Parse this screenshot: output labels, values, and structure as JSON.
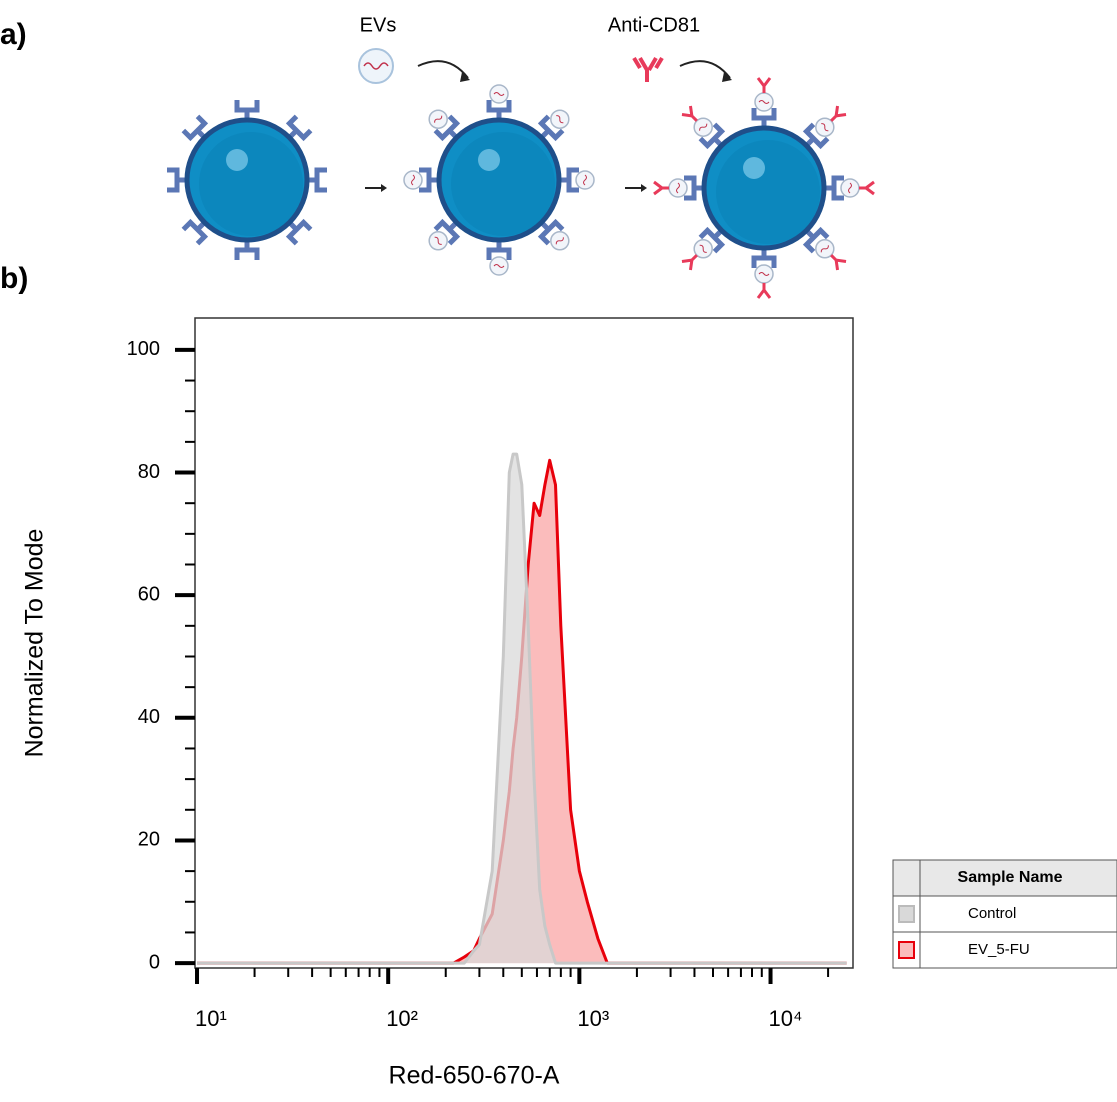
{
  "panel_labels": [
    "a)",
    "b)"
  ],
  "diagram": {
    "labels": [
      "EVs",
      "Anti-CD81"
    ]
  },
  "chart_data": {
    "type": "area",
    "x_label": "Red-650-670-A",
    "y_label": "Normalized To Mode",
    "log_x": true,
    "xlim": [
      9.76,
      27000
    ],
    "xticks": [
      {
        "value": 10,
        "label": "10¹"
      },
      {
        "value": 100,
        "label": "10²"
      },
      {
        "value": 1000,
        "label": "10³"
      },
      {
        "value": 10000,
        "label": "10⁴"
      }
    ],
    "xminorticks": [
      20,
      30,
      40,
      50,
      60,
      70,
      80,
      90,
      200,
      300,
      400,
      500,
      600,
      700,
      800,
      900,
      2000,
      3000,
      4000,
      5000,
      6000,
      7000,
      8000,
      9000,
      20000
    ],
    "ylim": [
      -0.8,
      105.2
    ],
    "yticks": [
      0,
      20,
      40,
      60,
      80,
      100
    ],
    "yminorticks": [
      5,
      10,
      15,
      25,
      30,
      35,
      45,
      50,
      55,
      65,
      70,
      75,
      85,
      90,
      95
    ],
    "legend_title": "Sample Name",
    "x": [
      10,
      220,
      250,
      280,
      300,
      350,
      400,
      430,
      450,
      470,
      500,
      540,
      580,
      620,
      660,
      700,
      750,
      800,
      900,
      1000,
      1100,
      1250,
      1400,
      25000
    ],
    "series": [
      {
        "name": "Control",
        "color": "#c8c8c8",
        "fill": "#d9d9d9",
        "values": [
          0,
          0,
          0,
          2,
          3,
          15,
          50,
          80,
          83,
          83,
          78,
          55,
          30,
          12,
          6,
          3,
          0,
          0,
          0,
          0,
          0,
          0,
          0,
          0
        ]
      },
      {
        "name": "EV_5-FU",
        "color": "#e8000b",
        "fill": "#fbbcbc",
        "values": [
          0,
          0,
          1,
          2,
          4,
          8,
          20,
          28,
          35,
          40,
          50,
          65,
          75,
          73,
          78,
          82,
          78,
          55,
          25,
          15,
          10,
          4,
          0,
          0
        ]
      }
    ]
  }
}
